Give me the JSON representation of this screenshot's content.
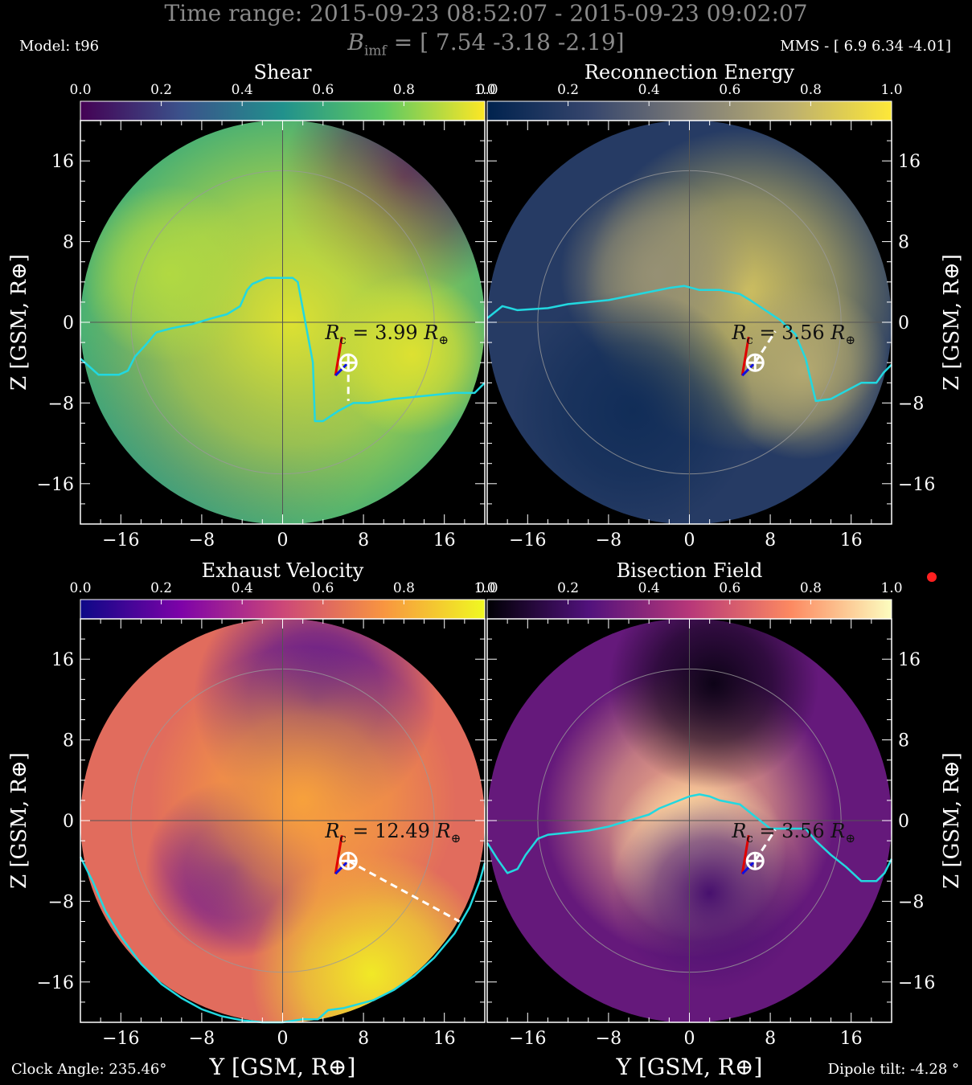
{
  "header": {
    "time_range": "Time range:  2015-09-23 08:52:07 - 2015-09-23 09:02:07",
    "bimf": "B",
    "bimf_sub": "imf",
    "bimf_value": " = [ 7.54 -3.18 -2.19]",
    "model": "Model: t96",
    "mms": "MMS - [ 6.9 6.34 -4.01]"
  },
  "footer": {
    "clock_angle": "Clock Angle: 235.46°",
    "dipole_tilt": "Dipole tilt: -4.28 °"
  },
  "colors": {
    "trace": "#22d8e0",
    "background": "#000000",
    "marker": "#ff2020"
  },
  "chart_data": [
    {
      "type": "heatmap",
      "title": "Shear",
      "colormap": "viridis",
      "colorbar_ticks": [
        "0.0",
        "0.2",
        "0.4",
        "0.6",
        "0.8",
        "1.0"
      ],
      "ylabel": "Z [GSM, R⊕]",
      "xlim": [
        -20,
        20
      ],
      "ylim": [
        -20,
        20
      ],
      "xticks": [
        "−16",
        "−8",
        "0",
        "8",
        "16"
      ],
      "yticks": [
        "16",
        "8",
        "0",
        "−8",
        "−16"
      ],
      "rc_label": "R_c = 3.99 R⊕",
      "rc_text": [
        "R",
        "c",
        " = 3.99 ",
        "R",
        "⊕"
      ],
      "spacecraft": [
        6.5,
        -4.0
      ],
      "dashed_to": [
        6.5,
        -7.8
      ],
      "trace": [
        [
          -20,
          -3.6
        ],
        [
          -18.2,
          -5.2
        ],
        [
          -16.2,
          -5.2
        ],
        [
          -15.3,
          -4.8
        ],
        [
          -14.6,
          -3.4
        ],
        [
          -13.5,
          -2.2
        ],
        [
          -12.5,
          -1.0
        ],
        [
          -11,
          -0.6
        ],
        [
          -9,
          -0.2
        ],
        [
          -7,
          0.4
        ],
        [
          -5.5,
          0.8
        ],
        [
          -4.2,
          1.6
        ],
        [
          -3.5,
          3.2
        ],
        [
          -3.0,
          3.8
        ],
        [
          -1.6,
          4.4
        ],
        [
          1.0,
          4.4
        ],
        [
          1.5,
          4.0
        ],
        [
          3.0,
          -4.0
        ],
        [
          3.2,
          -9.8
        ],
        [
          4.0,
          -9.8
        ],
        [
          5.5,
          -8.8
        ],
        [
          7.0,
          -8.0
        ],
        [
          8.5,
          -8.0
        ],
        [
          11.0,
          -7.6
        ],
        [
          13.0,
          -7.4
        ],
        [
          15.0,
          -7.2
        ],
        [
          17.0,
          -7.0
        ],
        [
          19.0,
          -7.0
        ],
        [
          20,
          -6.0
        ]
      ]
    },
    {
      "type": "heatmap",
      "title": "Reconnection Energy",
      "colormap": "cividis",
      "colorbar_ticks": [
        "0.0",
        "0.2",
        "0.4",
        "0.6",
        "0.8",
        "1.0"
      ],
      "ylabel": "Z [GSM, R⊕]",
      "xlim": [
        -20,
        20
      ],
      "ylim": [
        -20,
        20
      ],
      "xticks": [
        "−16",
        "−8",
        "0",
        "8",
        "16"
      ],
      "yticks": [
        "16",
        "8",
        "0",
        "−8",
        "−16"
      ],
      "rc_label": "R_c = 3.56 R⊕",
      "rc_text": [
        "R",
        "c",
        " = 3.56 ",
        "R",
        "⊕"
      ],
      "spacecraft": [
        6.5,
        -4.0
      ],
      "dashed_to": [
        8.5,
        -0.9
      ],
      "trace": [
        [
          -20,
          0.4
        ],
        [
          -18.5,
          1.6
        ],
        [
          -17,
          1.2
        ],
        [
          -14,
          1.4
        ],
        [
          -12,
          1.8
        ],
        [
          -10,
          2.0
        ],
        [
          -8,
          2.2
        ],
        [
          -6,
          2.6
        ],
        [
          -4,
          3.0
        ],
        [
          -2,
          3.4
        ],
        [
          -0.5,
          3.6
        ],
        [
          1,
          3.2
        ],
        [
          3,
          3.2
        ],
        [
          5,
          2.8
        ],
        [
          6,
          2.2
        ],
        [
          7.5,
          1.2
        ],
        [
          9,
          0.2
        ],
        [
          10.5,
          -1.2
        ],
        [
          11.5,
          -3.6
        ],
        [
          12.5,
          -7.8
        ],
        [
          14,
          -7.6
        ],
        [
          15.5,
          -6.8
        ],
        [
          17,
          -6.0
        ],
        [
          18.5,
          -6.0
        ],
        [
          19.2,
          -5.0
        ],
        [
          20,
          -4.2
        ]
      ]
    },
    {
      "type": "heatmap",
      "title": "Exhaust Velocity",
      "colormap": "plasma",
      "colorbar_ticks": [
        "0.0",
        "0.2",
        "0.4",
        "0.6",
        "0.8",
        "1.0"
      ],
      "ylabel": "Z [GSM, R⊕]",
      "xlabel": "Y [GSM, R⊕]",
      "xlim": [
        -20,
        20
      ],
      "ylim": [
        -20,
        20
      ],
      "xticks": [
        "−16",
        "−8",
        "0",
        "8",
        "16"
      ],
      "yticks": [
        "16",
        "8",
        "0",
        "−8",
        "−16"
      ],
      "rc_label": "R_c = 12.49 R⊕",
      "rc_text": [
        "R",
        "c",
        " = 12.49 ",
        "R",
        "⊕"
      ],
      "spacecraft": [
        6.5,
        -4.0
      ],
      "dashed_to": [
        17.5,
        -10.0
      ],
      "trace": [
        [
          -20,
          -3.6
        ],
        [
          -18.8,
          -6.0
        ],
        [
          -17.5,
          -9.0
        ],
        [
          -16,
          -11.5
        ],
        [
          -14,
          -14.2
        ],
        [
          -12,
          -16.2
        ],
        [
          -10,
          -17.6
        ],
        [
          -8,
          -18.7
        ],
        [
          -6,
          -19.4
        ],
        [
          -4,
          -19.8
        ],
        [
          -2,
          -20.0
        ],
        [
          0,
          -20.0
        ],
        [
          2,
          -19.7
        ],
        [
          3.5,
          -19.7
        ],
        [
          4.5,
          -18.8
        ],
        [
          6,
          -18.6
        ],
        [
          7.5,
          -18.2
        ],
        [
          9,
          -17.8
        ],
        [
          11,
          -16.8
        ],
        [
          13,
          -15.4
        ],
        [
          15,
          -13.6
        ],
        [
          17,
          -11.2
        ],
        [
          18.5,
          -8.6
        ],
        [
          19.5,
          -6.0
        ],
        [
          20,
          -4.2
        ]
      ]
    },
    {
      "type": "heatmap",
      "title": "Bisection Field",
      "colormap": "magma",
      "colorbar_ticks": [
        "0.0",
        "0.2",
        "0.4",
        "0.6",
        "0.8",
        "1.0"
      ],
      "ylabel": "Z [GSM, R⊕]",
      "xlabel": "Y [GSM, R⊕]",
      "xlim": [
        -20,
        20
      ],
      "ylim": [
        -20,
        20
      ],
      "xticks": [
        "−16",
        "−8",
        "0",
        "8",
        "16"
      ],
      "yticks": [
        "16",
        "8",
        "0",
        "−8",
        "−16"
      ],
      "rc_label": "R_c = 3.56 R⊕",
      "rc_text": [
        "R",
        "c",
        " = 3.56 ",
        "R",
        "⊕"
      ],
      "spacecraft": [
        6.5,
        -4.0
      ],
      "dashed_to": [
        8.5,
        -0.9
      ],
      "trace": [
        [
          -20,
          -2.2
        ],
        [
          -19,
          -3.8
        ],
        [
          -18,
          -5.2
        ],
        [
          -17,
          -4.8
        ],
        [
          -16.2,
          -3.4
        ],
        [
          -15,
          -1.8
        ],
        [
          -14,
          -1.4
        ],
        [
          -12,
          -1.2
        ],
        [
          -10,
          -1.0
        ],
        [
          -8,
          -0.6
        ],
        [
          -6,
          0.0
        ],
        [
          -4,
          0.6
        ],
        [
          -3,
          1.2
        ],
        [
          -1.5,
          1.8
        ],
        [
          0,
          2.4
        ],
        [
          1,
          2.6
        ],
        [
          2,
          2.4
        ],
        [
          3,
          2.0
        ],
        [
          5,
          1.6
        ],
        [
          6,
          0.8
        ],
        [
          7,
          0.0
        ],
        [
          8,
          -0.8
        ],
        [
          10,
          -0.8
        ],
        [
          11.5,
          -0.8
        ],
        [
          12.5,
          -2.0
        ],
        [
          14,
          -3.4
        ],
        [
          15.5,
          -4.6
        ],
        [
          17,
          -6.0
        ],
        [
          18.5,
          -6.0
        ],
        [
          19.3,
          -5.2
        ],
        [
          20,
          -3.8
        ]
      ]
    }
  ]
}
